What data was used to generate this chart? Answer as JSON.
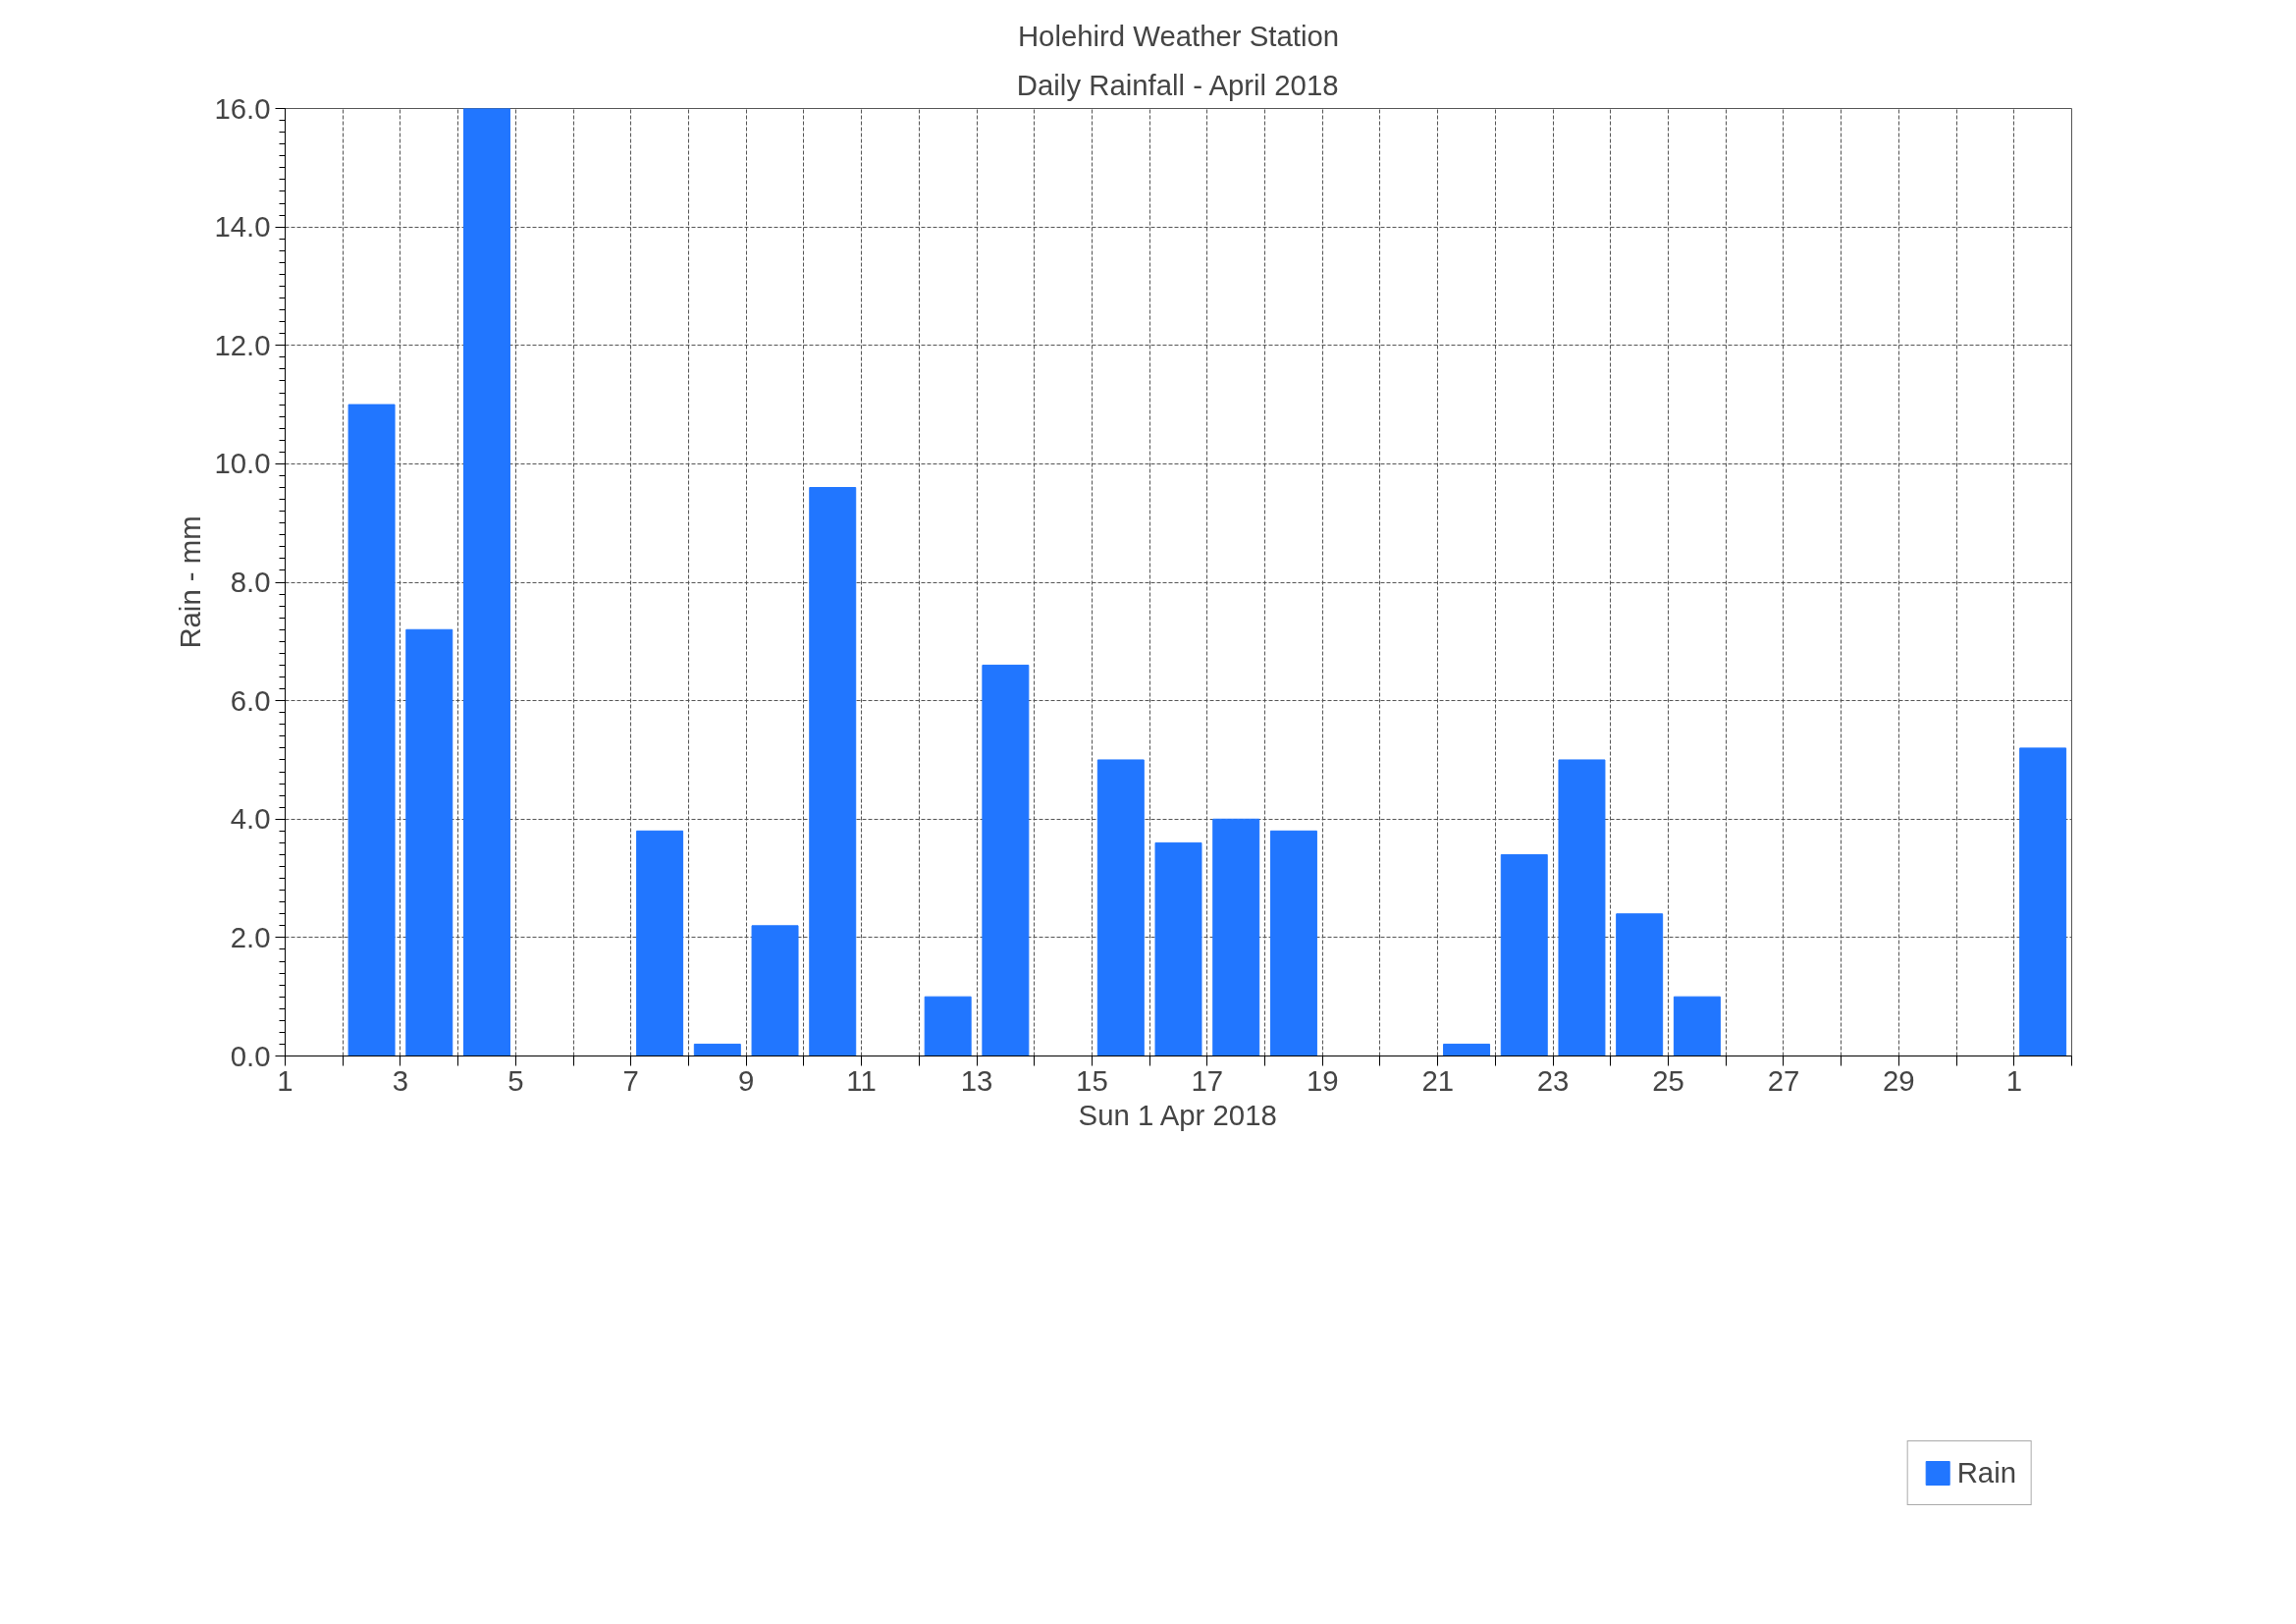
{
  "chart_data": {
    "type": "bar",
    "title": "Holehird Weather Station",
    "subtitle": "Daily Rainfall - April 2018",
    "xlabel": "Sun 1 Apr 2018",
    "ylabel": "Rain - mm",
    "x": [
      "2018-04-01T12:00",
      "2018-04-02T12:00",
      "2018-04-03T12:00",
      "2018-04-04T12:00",
      "2018-04-05T12:00",
      "2018-04-06T12:00",
      "2018-04-07T12:00",
      "2018-04-08T12:00",
      "2018-04-09T12:00",
      "2018-04-10T12:00",
      "2018-04-11T12:00",
      "2018-04-12T12:00",
      "2018-04-13T12:00",
      "2018-04-14T12:00",
      "2018-04-15T12:00",
      "2018-04-16T12:00",
      "2018-04-17T12:00",
      "2018-04-18T12:00",
      "2018-04-19T12:00",
      "2018-04-20T12:00",
      "2018-04-21T12:00",
      "2018-04-22T12:00",
      "2018-04-23T12:00",
      "2018-04-24T12:00",
      "2018-04-25T12:00",
      "2018-04-26T12:00",
      "2018-04-27T12:00",
      "2018-04-28T12:00",
      "2018-04-29T12:00",
      "2018-04-30T12:00",
      "2018-05-01T12:00"
    ],
    "series": [
      {
        "name": "Rain",
        "color": "#2176ff",
        "values": [
          0,
          11.0,
          7.2,
          16.0,
          0,
          0,
          3.8,
          0.2,
          2.2,
          9.6,
          0,
          1.0,
          6.6,
          0,
          5.0,
          3.6,
          4.0,
          3.8,
          0,
          0,
          0.2,
          3.4,
          5.0,
          2.4,
          1.0,
          0,
          0,
          0,
          0,
          0,
          5.2
        ]
      }
    ],
    "xlim": [
      "2018-04-01",
      "2018-05-02"
    ],
    "xticks": [
      {
        "value": "2018-04-01",
        "label": "1"
      },
      {
        "value": "2018-04-02",
        "label": null
      },
      {
        "value": "2018-04-03",
        "label": "3"
      },
      {
        "value": "2018-04-04",
        "label": null
      },
      {
        "value": "2018-04-05",
        "label": "5"
      },
      {
        "value": "2018-04-06",
        "label": null
      },
      {
        "value": "2018-04-07",
        "label": "7"
      },
      {
        "value": "2018-04-08",
        "label": null
      },
      {
        "value": "2018-04-09",
        "label": "9"
      },
      {
        "value": "2018-04-10",
        "label": null
      },
      {
        "value": "2018-04-11",
        "label": "11"
      },
      {
        "value": "2018-04-12",
        "label": null
      },
      {
        "value": "2018-04-13",
        "label": "13"
      },
      {
        "value": "2018-04-14",
        "label": null
      },
      {
        "value": "2018-04-15",
        "label": "15"
      },
      {
        "value": "2018-04-16",
        "label": null
      },
      {
        "value": "2018-04-17",
        "label": "17"
      },
      {
        "value": "2018-04-18",
        "label": null
      },
      {
        "value": "2018-04-19",
        "label": "19"
      },
      {
        "value": "2018-04-20",
        "label": null
      },
      {
        "value": "2018-04-21",
        "label": "21"
      },
      {
        "value": "2018-04-22",
        "label": null
      },
      {
        "value": "2018-04-23",
        "label": "23"
      },
      {
        "value": "2018-04-24",
        "label": null
      },
      {
        "value": "2018-04-25",
        "label": "25"
      },
      {
        "value": "2018-04-26",
        "label": null
      },
      {
        "value": "2018-04-27",
        "label": "27"
      },
      {
        "value": "2018-04-28",
        "label": null
      },
      {
        "value": "2018-04-29",
        "label": "29"
      },
      {
        "value": "2018-04-30",
        "label": null
      },
      {
        "value": "2018-05-01",
        "label": "1"
      },
      {
        "value": "2018-05-02",
        "label": null
      }
    ],
    "ylim": [
      0,
      16
    ],
    "yticks": [
      {
        "value": 0,
        "label": "0.0"
      },
      {
        "value": 2,
        "label": "2.0"
      },
      {
        "value": 4,
        "label": "4.0"
      },
      {
        "value": 6,
        "label": "6.0"
      },
      {
        "value": 8,
        "label": "8.0"
      },
      {
        "value": 10,
        "label": "10.0"
      },
      {
        "value": 12,
        "label": "12.0"
      },
      {
        "value": 14,
        "label": "14.0"
      },
      {
        "value": 16,
        "label": "16.0"
      }
    ],
    "grid": true,
    "legend": "bottom"
  }
}
